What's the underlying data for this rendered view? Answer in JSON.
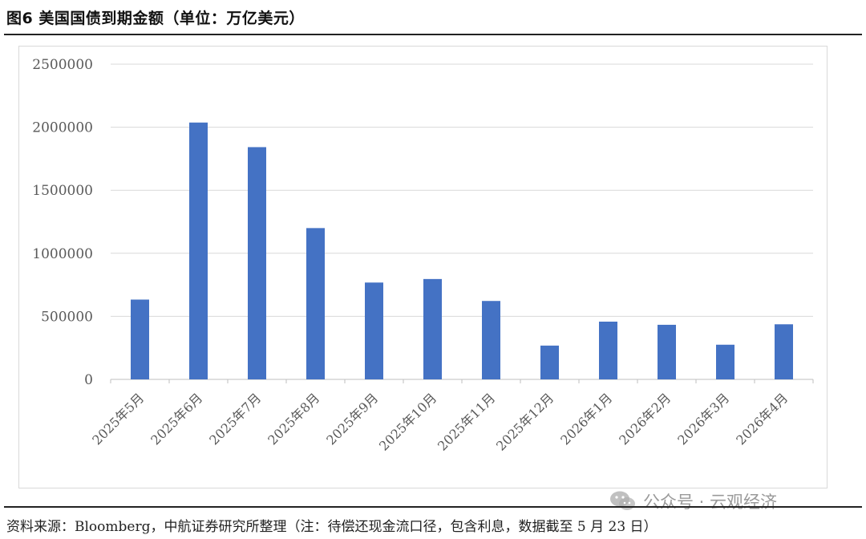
{
  "figure": {
    "title": "图6  美国国债到期金额（单位：万亿美元）",
    "source": "资料来源：Bloomberg，中航证券研究所整理（注：待偿还现金流口径，包含利息，数据截至 5 月 23 日）"
  },
  "watermark": {
    "text": "公众号 · 云观经济",
    "icon": "wechat-icon"
  },
  "colors": {
    "bar": "#4472C4",
    "grid": "#d9d9d9",
    "tick_text": "#595959"
  },
  "chart_data": {
    "type": "bar",
    "title": "",
    "xlabel": "",
    "ylabel": "",
    "categories": [
      "2025年5月",
      "2025年6月",
      "2025年7月",
      "2025年8月",
      "2025年9月",
      "2025年10月",
      "2025年11月",
      "2025年12月",
      "2026年1月",
      "2026年2月",
      "2026年3月",
      "2026年4月"
    ],
    "values": [
      633000,
      2037000,
      1842000,
      1200000,
      768000,
      796000,
      622000,
      268000,
      458000,
      433000,
      275000,
      437000
    ],
    "ylim": [
      0,
      2500000
    ],
    "yticks": [
      "0",
      "500000",
      "1000000",
      "1500000",
      "2000000",
      "2500000"
    ],
    "grid": true,
    "legend": "none"
  }
}
